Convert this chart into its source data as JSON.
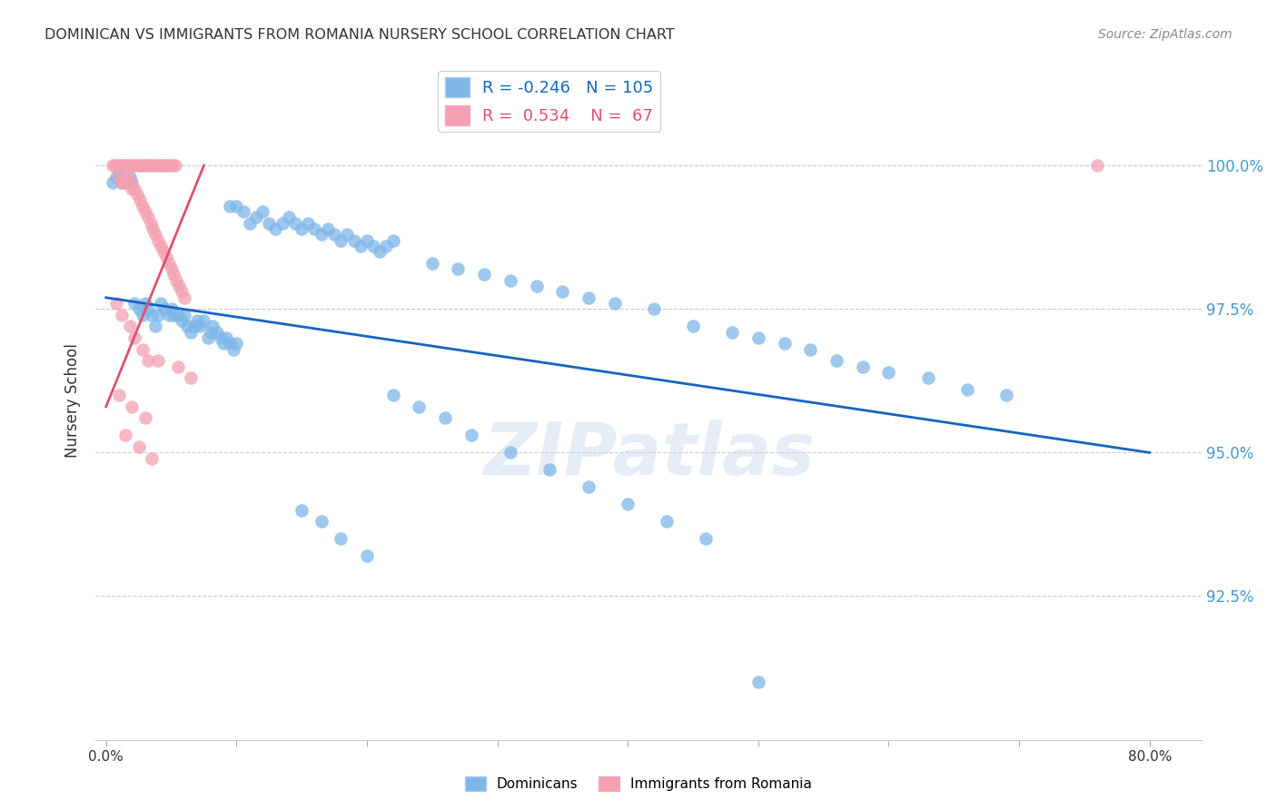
{
  "title": "DOMINICAN VS IMMIGRANTS FROM ROMANIA NURSERY SCHOOL CORRELATION CHART",
  "source": "Source: ZipAtlas.com",
  "ylabel": "Nursery School",
  "ytick_labels": [
    "92.5%",
    "95.0%",
    "97.5%",
    "100.0%"
  ],
  "ytick_values": [
    0.925,
    0.95,
    0.975,
    1.0
  ],
  "xlim": [
    -0.008,
    0.84
  ],
  "ylim": [
    0.9,
    1.018
  ],
  "legend_blue_r": "-0.246",
  "legend_blue_n": "105",
  "legend_pink_r": "0.534",
  "legend_pink_n": "67",
  "watermark": "ZIPatlas",
  "blue_scatter_x": [
    0.005,
    0.008,
    0.01,
    0.012,
    0.015,
    0.018,
    0.02,
    0.022,
    0.025,
    0.028,
    0.03,
    0.032,
    0.035,
    0.038,
    0.04,
    0.042,
    0.045,
    0.048,
    0.05,
    0.052,
    0.055,
    0.058,
    0.06,
    0.062,
    0.065,
    0.068,
    0.07,
    0.072,
    0.075,
    0.078,
    0.08,
    0.082,
    0.085,
    0.088,
    0.09,
    0.092,
    0.095,
    0.098,
    0.1,
    0.095,
    0.1,
    0.105,
    0.11,
    0.115,
    0.12,
    0.125,
    0.13,
    0.135,
    0.14,
    0.145,
    0.15,
    0.155,
    0.16,
    0.165,
    0.17,
    0.175,
    0.18,
    0.185,
    0.19,
    0.195,
    0.2,
    0.205,
    0.21,
    0.215,
    0.22,
    0.25,
    0.27,
    0.29,
    0.31,
    0.33,
    0.35,
    0.37,
    0.39,
    0.42,
    0.45,
    0.48,
    0.5,
    0.52,
    0.54,
    0.56,
    0.58,
    0.6,
    0.63,
    0.66,
    0.69,
    0.15,
    0.165,
    0.18,
    0.2,
    0.22,
    0.24,
    0.26,
    0.28,
    0.31,
    0.34,
    0.37,
    0.4,
    0.43,
    0.46,
    0.5
  ],
  "blue_scatter_y": [
    0.997,
    0.998,
    0.999,
    0.997,
    0.997,
    0.998,
    0.997,
    0.976,
    0.975,
    0.974,
    0.976,
    0.975,
    0.974,
    0.972,
    0.974,
    0.976,
    0.975,
    0.974,
    0.975,
    0.974,
    0.974,
    0.973,
    0.974,
    0.972,
    0.971,
    0.972,
    0.973,
    0.972,
    0.973,
    0.97,
    0.971,
    0.972,
    0.971,
    0.97,
    0.969,
    0.97,
    0.969,
    0.968,
    0.969,
    0.993,
    0.993,
    0.992,
    0.99,
    0.991,
    0.992,
    0.99,
    0.989,
    0.99,
    0.991,
    0.99,
    0.989,
    0.99,
    0.989,
    0.988,
    0.989,
    0.988,
    0.987,
    0.988,
    0.987,
    0.986,
    0.987,
    0.986,
    0.985,
    0.986,
    0.987,
    0.983,
    0.982,
    0.981,
    0.98,
    0.979,
    0.978,
    0.977,
    0.976,
    0.975,
    0.972,
    0.971,
    0.97,
    0.969,
    0.968,
    0.966,
    0.965,
    0.964,
    0.963,
    0.961,
    0.96,
    0.94,
    0.938,
    0.935,
    0.932,
    0.96,
    0.958,
    0.956,
    0.953,
    0.95,
    0.947,
    0.944,
    0.941,
    0.938,
    0.935,
    0.91
  ],
  "pink_scatter_x": [
    0.005,
    0.007,
    0.009,
    0.011,
    0.013,
    0.015,
    0.017,
    0.019,
    0.021,
    0.023,
    0.025,
    0.027,
    0.029,
    0.031,
    0.033,
    0.035,
    0.037,
    0.039,
    0.041,
    0.043,
    0.045,
    0.047,
    0.049,
    0.051,
    0.053,
    0.01,
    0.012,
    0.014,
    0.016,
    0.018,
    0.02,
    0.022,
    0.024,
    0.026,
    0.028,
    0.03,
    0.032,
    0.034,
    0.036,
    0.038,
    0.04,
    0.042,
    0.044,
    0.046,
    0.048,
    0.05,
    0.052,
    0.054,
    0.056,
    0.058,
    0.06,
    0.04,
    0.055,
    0.065,
    0.01,
    0.02,
    0.03,
    0.015,
    0.025,
    0.035,
    0.008,
    0.012,
    0.018,
    0.022,
    0.028,
    0.032,
    0.76
  ],
  "pink_scatter_y": [
    1.0,
    1.0,
    1.0,
    1.0,
    1.0,
    1.0,
    1.0,
    1.0,
    1.0,
    1.0,
    1.0,
    1.0,
    1.0,
    1.0,
    1.0,
    1.0,
    1.0,
    1.0,
    1.0,
    1.0,
    1.0,
    1.0,
    1.0,
    1.0,
    1.0,
    0.998,
    0.997,
    0.997,
    0.998,
    0.997,
    0.996,
    0.996,
    0.995,
    0.994,
    0.993,
    0.992,
    0.991,
    0.99,
    0.989,
    0.988,
    0.987,
    0.986,
    0.985,
    0.984,
    0.983,
    0.982,
    0.981,
    0.98,
    0.979,
    0.978,
    0.977,
    0.966,
    0.965,
    0.963,
    0.96,
    0.958,
    0.956,
    0.953,
    0.951,
    0.949,
    0.976,
    0.974,
    0.972,
    0.97,
    0.968,
    0.966,
    1.0
  ],
  "blue_line_x": [
    0.0,
    0.8
  ],
  "blue_line_y": [
    0.977,
    0.95
  ],
  "pink_line_x": [
    0.0,
    0.075
  ],
  "pink_line_y": [
    0.958,
    1.0
  ],
  "blue_color": "#7EB6E8",
  "pink_color": "#F4A0B0",
  "blue_line_color": "#1565C0",
  "pink_line_color": "#E05070",
  "background_color": "#FFFFFF",
  "grid_color": "#CCCCCC",
  "right_axis_color": "#4499CC",
  "title_color": "#333333"
}
